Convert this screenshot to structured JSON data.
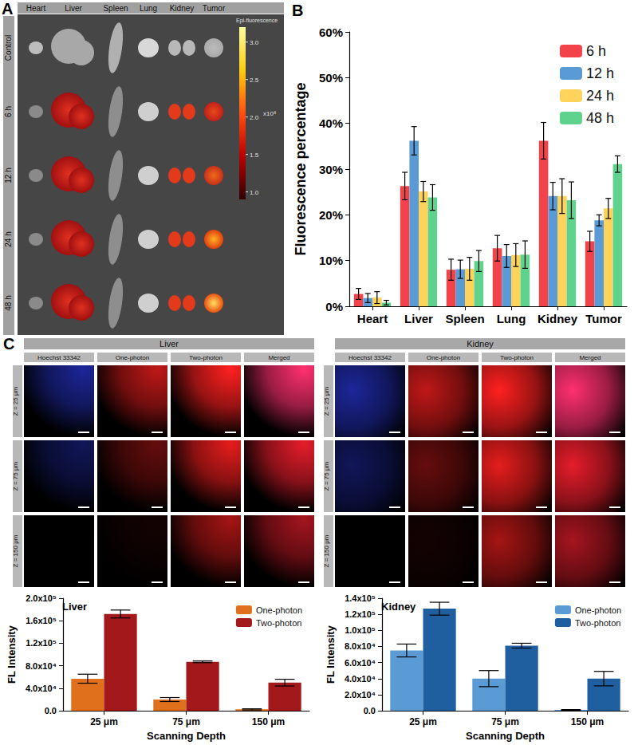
{
  "panel_labels": [
    "A",
    "B",
    "C"
  ],
  "panel_a": {
    "organs": [
      "Heart",
      "Liver",
      "Spleen",
      "Lung",
      "Kidney",
      "Tumor"
    ],
    "rows": [
      "Control",
      "6 h",
      "12 h",
      "24 h",
      "48 h"
    ],
    "colorbar": {
      "title": "Epi-fluorescence",
      "unit_label": "x10⁸",
      "range": [
        0.9,
        3.2
      ],
      "ticks": [
        {
          "value": 3,
          "label": "3.0"
        },
        {
          "value": 2.5,
          "label": "2.5"
        },
        {
          "value": 2,
          "label": "2.0"
        },
        {
          "value": 1.5,
          "label": "1.5"
        },
        {
          "value": 1,
          "label": "1.0"
        }
      ]
    }
  },
  "panel_c_images": {
    "groups": [
      "Liver",
      "Kidney"
    ],
    "columns": [
      "Hoechst 33342",
      "One-photon",
      "Two-photon",
      "Merged"
    ],
    "rows": [
      "Z = 25 μm",
      "Z = 75 μm",
      "Z = 150 μm"
    ]
  },
  "chart_data": [
    {
      "type": "bar",
      "categories": [
        "Heart",
        "Liver",
        "Spleen",
        "Lung",
        "Kidney",
        "Tumor"
      ],
      "y_label": "Fluorescence percentage",
      "ylim": [
        0,
        60
      ],
      "yticks": [
        {
          "value": 0,
          "label": "0%"
        },
        {
          "value": 10,
          "label": "10%"
        },
        {
          "value": 20,
          "label": "20%"
        },
        {
          "value": 30,
          "label": "30%"
        },
        {
          "value": 40,
          "label": "40%"
        },
        {
          "value": 50,
          "label": "50%"
        },
        {
          "value": 60,
          "label": "60%"
        }
      ],
      "grid": false,
      "legend": "top-right",
      "series": [
        {
          "name": "6 h",
          "color": "#f2434a",
          "values": [
            2.7,
            26.3,
            8.0,
            12.7,
            36.2,
            14.2
          ],
          "errors": [
            1.2,
            3.0,
            2.3,
            2.8,
            4.0,
            2.2
          ]
        },
        {
          "name": "12 h",
          "color": "#5b9bd5",
          "values": [
            1.8,
            36.2,
            8.1,
            11.0,
            24.1,
            18.8
          ],
          "errors": [
            1.0,
            3.1,
            2.0,
            2.5,
            3.0,
            1.2
          ]
        },
        {
          "name": "24 h",
          "color": "#fdd35b",
          "values": [
            1.9,
            25.1,
            8.2,
            11.2,
            24.1,
            21.4
          ],
          "errors": [
            1.3,
            2.2,
            2.5,
            2.5,
            3.8,
            2.2
          ]
        },
        {
          "name": "48 h",
          "color": "#5fd38d",
          "values": [
            0.8,
            23.8,
            9.9,
            11.3,
            23.2,
            31.1
          ],
          "errors": [
            0.5,
            2.8,
            2.3,
            3.0,
            4.0,
            1.8
          ]
        }
      ]
    },
    {
      "type": "bar",
      "annotation": "Liver",
      "categories": [
        "25 μm",
        "75 μm",
        "150 μm"
      ],
      "x_label": "Scanning Depth",
      "y_label": "FL Intensity",
      "ylim": [
        0,
        200000
      ],
      "yticks": [
        {
          "value": 0,
          "label": "0.0"
        },
        {
          "value": 40000,
          "label": "4.0x10⁴"
        },
        {
          "value": 80000,
          "label": "8.0x10⁴"
        },
        {
          "value": 120000,
          "label": "1.2x10⁵"
        },
        {
          "value": 160000,
          "label": "1.6x10⁵"
        },
        {
          "value": 200000,
          "label": "2.0x10⁵"
        }
      ],
      "grid": false,
      "legend": "top-right",
      "series": [
        {
          "name": "One-photon",
          "color": "#e0701c",
          "values": [
            57000,
            20000,
            2500
          ],
          "errors": [
            8000,
            3500,
            1000
          ]
        },
        {
          "name": "Two-photon",
          "color": "#a3181a",
          "values": [
            172000,
            87000,
            50000
          ],
          "errors": [
            7000,
            1500,
            6000
          ]
        }
      ]
    },
    {
      "type": "bar",
      "annotation": "Kidney",
      "categories": [
        "25 μm",
        "75 μm",
        "150 μm"
      ],
      "x_label": "Scanning Depth",
      "y_label": "FL Intensity",
      "ylim": [
        0,
        140000
      ],
      "yticks": [
        {
          "value": 0,
          "label": "0.0"
        },
        {
          "value": 20000,
          "label": "2.0x10⁴"
        },
        {
          "value": 40000,
          "label": "4.0x10⁴"
        },
        {
          "value": 60000,
          "label": "6.0x10⁴"
        },
        {
          "value": 80000,
          "label": "8.0x10⁴"
        },
        {
          "value": 100000,
          "label": "1.0x10⁵"
        },
        {
          "value": 120000,
          "label": "1.2x10⁵"
        },
        {
          "value": 140000,
          "label": "1.4x10⁵"
        }
      ],
      "grid": false,
      "legend": "top-right",
      "series": [
        {
          "name": "One-photon",
          "color": "#5b9bd5",
          "values": [
            75000,
            40000,
            1000
          ],
          "errors": [
            8000,
            10000,
            500
          ]
        },
        {
          "name": "Two-photon",
          "color": "#1f5f9f",
          "values": [
            127000,
            81000,
            40000
          ],
          "errors": [
            8000,
            3000,
            9000
          ]
        }
      ]
    }
  ]
}
